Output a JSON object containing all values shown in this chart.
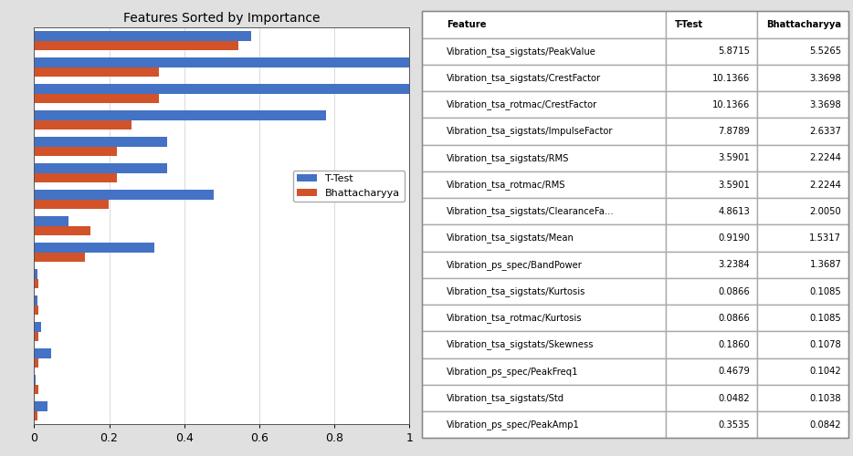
{
  "title": "Features Sorted by Importance",
  "features": [
    "Vibration_tsa_sigstats/PeakValue",
    "Vibration_tsa_sigstats/CrestFactor",
    "Vibration_tsa_rotmac/CrestFactor",
    "Vibration_tsa_sigstats/ImpulseFactor",
    "Vibration_tsa_sigstats/RMS",
    "Vibration_tsa_rotmac/RMS",
    "Vibration_tsa_sigstats/ClearanceFa...",
    "Vibration_tsa_sigstats/Mean",
    "Vibration_ps_spec/BandPower",
    "Vibration_tsa_sigstats/Kurtosis",
    "Vibration_tsa_rotmac/Kurtosis",
    "Vibration_tsa_sigstats/Skewness",
    "Vibration_ps_spec/PeakFreq1",
    "Vibration_tsa_sigstats/Std",
    "Vibration_ps_spec/PeakAmp1"
  ],
  "ttest_raw": [
    5.8715,
    10.1366,
    10.1366,
    7.8789,
    3.5901,
    3.5901,
    4.8613,
    0.919,
    3.2384,
    0.0866,
    0.0866,
    0.186,
    0.4679,
    0.0482,
    0.3535
  ],
  "bhatt_raw": [
    5.5265,
    3.3698,
    3.3698,
    2.6337,
    2.2244,
    2.2244,
    2.005,
    1.5317,
    1.3687,
    0.1085,
    0.1085,
    0.1078,
    0.1042,
    0.1038,
    0.0842
  ],
  "ttest_color": "#4472c4",
  "bhatt_color": "#d2522a",
  "table_ttest": [
    "5.8715",
    "10.1366",
    "10.1366",
    "7.8789",
    "3.5901",
    "3.5901",
    "4.8613",
    "0.9190",
    "3.2384",
    "0.0866",
    "0.0866",
    "0.1860",
    "0.4679",
    "0.0482",
    "0.3535"
  ],
  "table_bhatt": [
    "5.5265",
    "3.3698",
    "3.3698",
    "2.6337",
    "2.2244",
    "2.2244",
    "2.0050",
    "1.5317",
    "1.3687",
    "0.1085",
    "0.1085",
    "0.1078",
    "0.1042",
    "0.1038",
    "0.0842"
  ],
  "legend_labels": [
    "T-Test",
    "Bhattacharyya"
  ],
  "fig_bg": "#e0e0e0"
}
